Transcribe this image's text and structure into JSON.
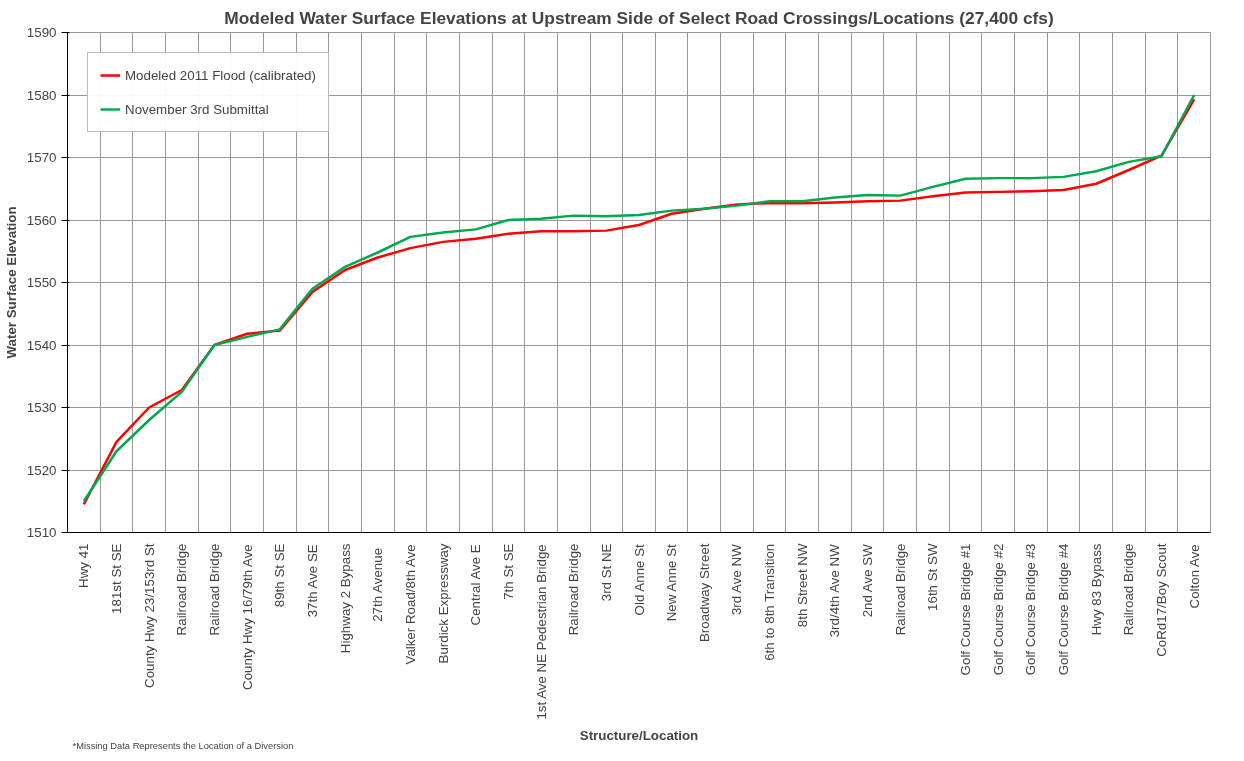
{
  "chart_data": {
    "type": "line",
    "title": "Modeled Water Surface Elevations at Upstream Side of Select Road Crossings/Locations (27,400 cfs)",
    "xlabel": "Structure/Location",
    "ylabel": "Water Surface Elevation",
    "categories": [
      "Hwy 41",
      "181st St SE",
      "County Hwy 23/153rd St",
      "Railroad Bridge",
      "Railroad Bridge",
      "County Hwy 16/79th Ave",
      "89th St SE",
      "37th Ave SE",
      "Highway 2 Bypass",
      "27th  Avenue",
      "Valker Road/8th Ave",
      "Burdick Expressway",
      "Central Ave E",
      "7th St SE",
      "1st Ave NE Pedestrian Bridge",
      "Railroad Bridge",
      "3rd St NE",
      "Old Anne St",
      "New Anne St",
      "Broadway Street",
      "3rd Ave NW",
      "6th to 8th Transition",
      "8th Street NW",
      "3rd/4th Ave NW",
      "2nd Ave SW",
      "Railroad Bridge",
      "16th St SW",
      "Golf Course Bridge #1",
      "Golf Course Bridge #2",
      "Golf Course Bridge #3",
      "Golf Course Bridge #4",
      "Hwy 83 Bypass",
      "Railroad Bridge",
      "CoRd17/Boy Scout",
      "Colton Ave"
    ],
    "series": [
      {
        "name": "Modeled 2011 Flood (calibrated)",
        "color": "#ff0000",
        "values": [
          1514.5,
          1524.5,
          1530,
          1532.8,
          1540,
          1541.8,
          1542.3,
          1548.5,
          1552,
          1554,
          1555.5,
          1556.5,
          1557,
          1557.8,
          1558.2,
          1558.2,
          1558.3,
          1559.2,
          1561,
          1561.8,
          1562.5,
          1562.7,
          1562.7,
          1562.8,
          1563,
          1563.1,
          1563.8,
          1564.4,
          1564.5,
          1564.6,
          1564.8,
          1565.8,
          1568,
          1570.3,
          1579.3
        ]
      },
      {
        "name": "November 3rd Submittal",
        "color": "#00a94f",
        "values": [
          1515,
          1523,
          1528,
          1532.5,
          1540,
          1541.3,
          1542.5,
          1549,
          1552.5,
          1554.8,
          1557.3,
          1558,
          1558.5,
          1560,
          1560.2,
          1560.7,
          1560.6,
          1560.8,
          1561.5,
          1561.8,
          1562.3,
          1563,
          1563,
          1563.6,
          1564,
          1563.9,
          1565.3,
          1566.6,
          1566.7,
          1566.7,
          1566.9,
          1567.8,
          1569.3,
          1570.2,
          1580
        ]
      }
    ],
    "ylim": [
      1510,
      1590
    ],
    "yticks": [
      1510,
      1520,
      1530,
      1540,
      1550,
      1560,
      1570,
      1580,
      1590
    ],
    "grid": true,
    "legend": "top left",
    "line_style": "solid",
    "annotations": [
      "*Missing Data Represents the Location of a Diversion"
    ]
  }
}
